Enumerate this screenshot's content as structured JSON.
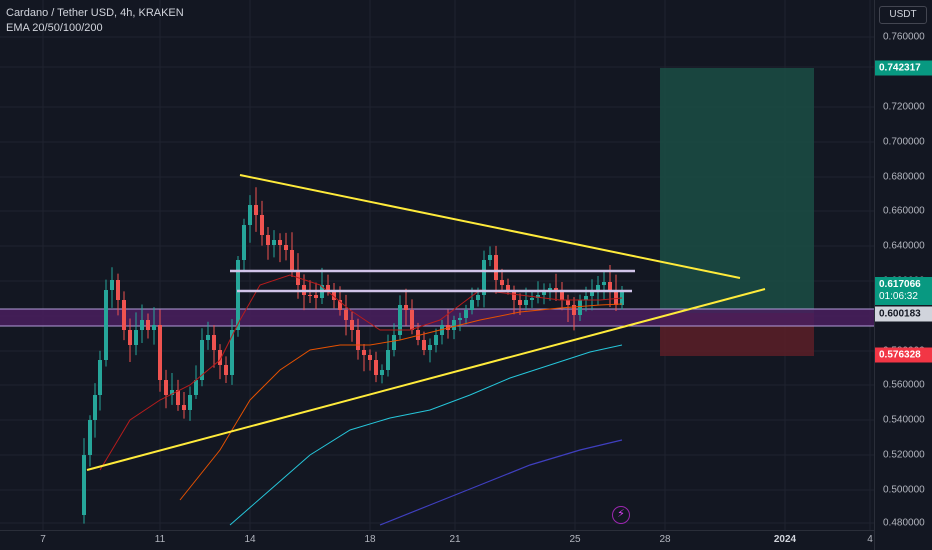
{
  "legend": {
    "symbol_line": "Cardano / Tether USD, 4h, KRAKEN",
    "indicator_line": "EMA 20/50/100/200"
  },
  "axis": {
    "currency": "USDT",
    "ticks": [
      "0.760000",
      "0.740000",
      "0.720000",
      "0.700000",
      "0.680000",
      "0.660000",
      "0.640000",
      "0.620000",
      "0.600000",
      "0.580000",
      "0.560000",
      "0.540000",
      "0.520000",
      "0.500000",
      "0.480000"
    ]
  },
  "badges": {
    "target": "0.742317",
    "last_price": "0.617066",
    "countdown": "01:06:32",
    "level": "0.600183",
    "stop": "0.576328"
  },
  "time_axis": {
    "labels": [
      {
        "text": "7",
        "bold": false
      },
      {
        "text": "11",
        "bold": false
      },
      {
        "text": "14",
        "bold": false
      },
      {
        "text": "18",
        "bold": false
      },
      {
        "text": "21",
        "bold": false
      },
      {
        "text": "25",
        "bold": false
      },
      {
        "text": "28",
        "bold": false
      },
      {
        "text": "2024",
        "bold": true
      },
      {
        "text": "4",
        "bold": false
      }
    ]
  },
  "colors": {
    "background": "#131722",
    "up": "#26a69a",
    "down": "#ef5350",
    "trendline": "#ffeb3b",
    "zone": "#9c27b0",
    "target_zone": "#1b5e50",
    "stop_zone": "#6b1f28"
  },
  "icons": {
    "lightning": "lightning-icon"
  }
}
